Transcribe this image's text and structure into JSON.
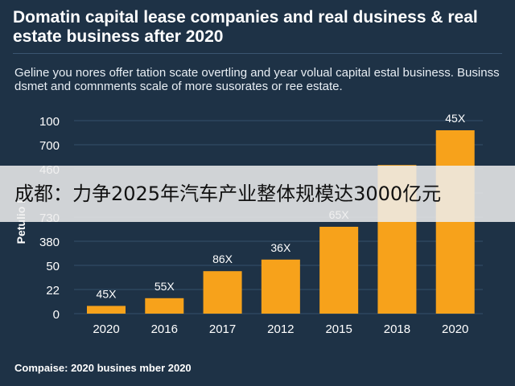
{
  "chart_data": {
    "type": "bar",
    "title": "Domatin capital lease companies and real dusiness & real estate business after 2020",
    "subtitle": "Geline you nores offer tation scate overtling and year volual capital estal business. Businss dsmet and comnments scale of more susorates or ree estate.",
    "ylabel": "Petulio L...",
    "footer": "Compaise: 2020 busines mber 2020",
    "categories": [
      "2020",
      "2016",
      "2017",
      "2012",
      "2015",
      "2018",
      "2020"
    ],
    "values": [
      4,
      8,
      22,
      28,
      45,
      77,
      95
    ],
    "data_labels": [
      "45X",
      "55X",
      "86X",
      "36X",
      "65X",
      "",
      "45X"
    ],
    "y_ticks": [
      "100",
      "700",
      "460",
      "",
      "730",
      "380",
      "50",
      "22",
      "0"
    ],
    "colors": {
      "bar": "#f7a21b",
      "background": "#1e3246",
      "grid": "#34506a"
    }
  },
  "overlay": {
    "caption": "成都：力争2025年汽车产业整体规模达3000亿元"
  }
}
